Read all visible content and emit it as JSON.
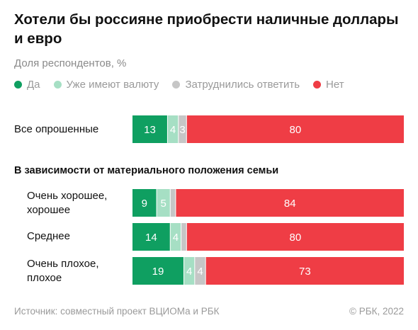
{
  "header": {
    "title": "Хотели бы россияне приобрести наличные доллары и евро",
    "subtitle": "Доля респондентов, %"
  },
  "legend": [
    {
      "label": "Да",
      "color": "#0f9f61"
    },
    {
      "label": "Уже имеют валюту",
      "color": "#a6dfc4"
    },
    {
      "label": "Затруднились ответить",
      "color": "#c6c6c6"
    },
    {
      "label": "Нет",
      "color": "#ef3d45"
    }
  ],
  "labels": {
    "all": "Все опрошенные",
    "section": "В зависимости от материального положения семьи",
    "good_line1": "Очень хорошее,",
    "good_line2": "хорошее",
    "mid": "Среднее",
    "bad_line1": "Очень плохое,",
    "bad_line2": "плохое"
  },
  "footer": {
    "source": "Источник: совместный проект ВЦИОМа и РБК",
    "copyright": "© РБК, 2022"
  },
  "chart_data": {
    "type": "bar",
    "orientation": "horizontal",
    "stacked": true,
    "categories": [
      "Все опрошенные",
      "Очень хорошее, хорошее",
      "Среднее",
      "Очень плохое, плохое"
    ],
    "series": [
      {
        "name": "Да",
        "color": "#0f9f61",
        "values": [
          13,
          9,
          14,
          19
        ]
      },
      {
        "name": "Уже имеют валюту",
        "color": "#a6dfc4",
        "values": [
          4,
          5,
          4,
          4
        ]
      },
      {
        "name": "Затруднились ответить",
        "color": "#c6c6c6",
        "values": [
          3,
          2,
          2,
          4
        ]
      },
      {
        "name": "Нет",
        "color": "#ef3d45",
        "values": [
          80,
          84,
          80,
          73
        ]
      }
    ],
    "xlim": [
      0,
      100
    ],
    "data_labels_shown": [
      [
        true,
        true,
        true,
        true
      ],
      [
        true,
        true,
        false,
        true
      ],
      [
        true,
        true,
        false,
        true
      ],
      [
        true,
        true,
        true,
        true
      ]
    ]
  }
}
